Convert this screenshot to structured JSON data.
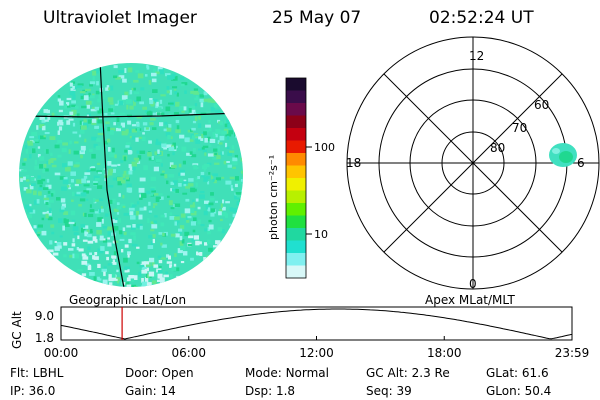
{
  "header": {
    "instrument": "Ultraviolet Imager",
    "date": "25 May 07",
    "time": "02:52:24 UT"
  },
  "colorbar": {
    "unit_label": "photon cm⁻²s⁻¹",
    "ticks": [
      "100",
      "10"
    ],
    "colors": [
      "#1a0b2e",
      "#3a0d4a",
      "#6a0a4a",
      "#8c0018",
      "#c40010",
      "#e81a00",
      "#ff8a00",
      "#ffc400",
      "#f0f000",
      "#b8f000",
      "#60f000",
      "#20e040",
      "#20d8a0",
      "#20e0d0",
      "#80f0f0",
      "#d8f8f8"
    ]
  },
  "image_panel": {
    "caption": "Geographic Lat/Lon",
    "fill_colors": [
      "#40e8b8",
      "#20d890",
      "#70f0e0",
      "#a0f4f0",
      "#30e0c0",
      "#60e890"
    ]
  },
  "polar_panel": {
    "caption": "Apex MLat/MLT",
    "mlt_labels": {
      "top": "12",
      "left": "18",
      "right": "6",
      "bottom": "0"
    },
    "lat_labels": [
      "80",
      "70",
      "60"
    ]
  },
  "gc_plot": {
    "ylabel": "GC Alt",
    "yticks": [
      "9.0",
      "1.8"
    ],
    "xticks": [
      "00:00",
      "06:00",
      "12:00",
      "18:00",
      "23:59"
    ],
    "marker_time_hours": 2.87,
    "marker_color": "#cc0000"
  },
  "status": {
    "row1": [
      {
        "key": "Flt:",
        "value": "LBHL"
      },
      {
        "key": "Door:",
        "value": "Open"
      },
      {
        "key": "Mode:",
        "value": "Normal"
      },
      {
        "key": "GC Alt:",
        "value": "2.3 Re"
      },
      {
        "key": "GLat:",
        "value": "61.6"
      }
    ],
    "row2": [
      {
        "key": "IP:",
        "value": "36.0"
      },
      {
        "key": "Gain:",
        "value": "14"
      },
      {
        "key": "Dsp:",
        "value": "1.8"
      },
      {
        "key": "Seq:",
        "value": "39"
      },
      {
        "key": "GLon:",
        "value": "50.4"
      }
    ]
  }
}
